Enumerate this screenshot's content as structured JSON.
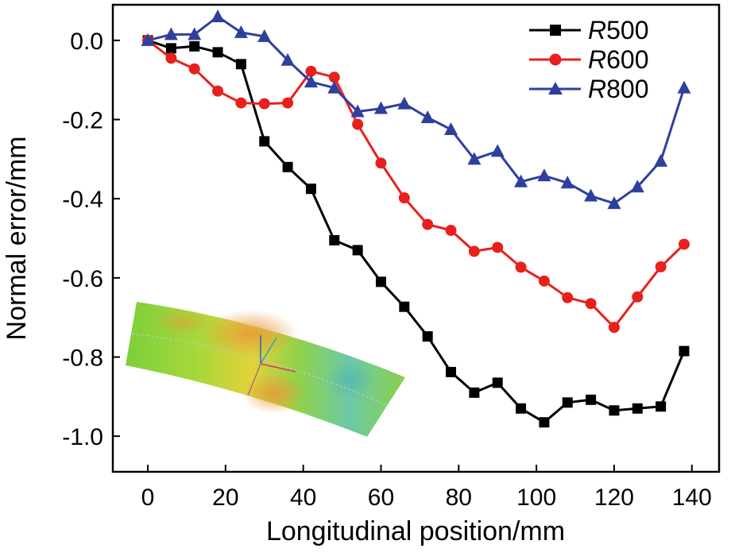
{
  "chart_data": {
    "type": "line",
    "title": "",
    "xlabel": "Longitudinal position/mm",
    "ylabel": "Normal error/mm",
    "xlim": [
      -9,
      147
    ],
    "ylim": [
      -1.09,
      0.09
    ],
    "xticks": [
      0,
      20,
      40,
      60,
      80,
      100,
      120,
      140
    ],
    "yticks": [
      0.0,
      -0.2,
      -0.4,
      -0.6,
      -0.8,
      -1.0
    ],
    "ytick_labels": [
      "0.0",
      "-0.2",
      "-0.4",
      "-0.6",
      "-0.8",
      "-1.0"
    ],
    "legend_position": "top-right",
    "x": [
      0,
      6,
      12,
      18,
      24,
      30,
      36,
      42,
      48,
      54,
      60,
      66,
      72,
      78,
      84,
      90,
      96,
      102,
      108,
      114,
      120,
      126,
      132,
      138
    ],
    "series": [
      {
        "name": "R500",
        "legend_italic": "R",
        "legend_rest": "500",
        "color": "#000000",
        "marker": "square",
        "values": [
          0.0,
          -0.02,
          -0.015,
          -0.03,
          -0.06,
          -0.255,
          -0.32,
          -0.375,
          -0.505,
          -0.53,
          -0.61,
          -0.673,
          -0.748,
          -0.838,
          -0.89,
          -0.865,
          -0.93,
          -0.965,
          -0.915,
          -0.908,
          -0.935,
          -0.93,
          -0.925,
          -0.785
        ]
      },
      {
        "name": "R600",
        "legend_italic": "R",
        "legend_rest": "600",
        "color": "#e8201c",
        "marker": "circle",
        "values": [
          0.0,
          -0.045,
          -0.072,
          -0.128,
          -0.158,
          -0.16,
          -0.158,
          -0.078,
          -0.093,
          -0.212,
          -0.31,
          -0.398,
          -0.465,
          -0.48,
          -0.533,
          -0.523,
          -0.573,
          -0.608,
          -0.65,
          -0.665,
          -0.725,
          -0.648,
          -0.572,
          -0.515
        ]
      },
      {
        "name": "R800",
        "legend_italic": "R",
        "legend_rest": "800",
        "color": "#2f3f9e",
        "marker": "triangle",
        "values": [
          0.0,
          0.015,
          0.015,
          0.06,
          0.02,
          0.01,
          -0.05,
          -0.105,
          -0.12,
          -0.18,
          -0.172,
          -0.16,
          -0.195,
          -0.225,
          -0.3,
          -0.28,
          -0.357,
          -0.342,
          -0.36,
          -0.393,
          -0.412,
          -0.37,
          -0.305,
          -0.12
        ]
      }
    ]
  }
}
